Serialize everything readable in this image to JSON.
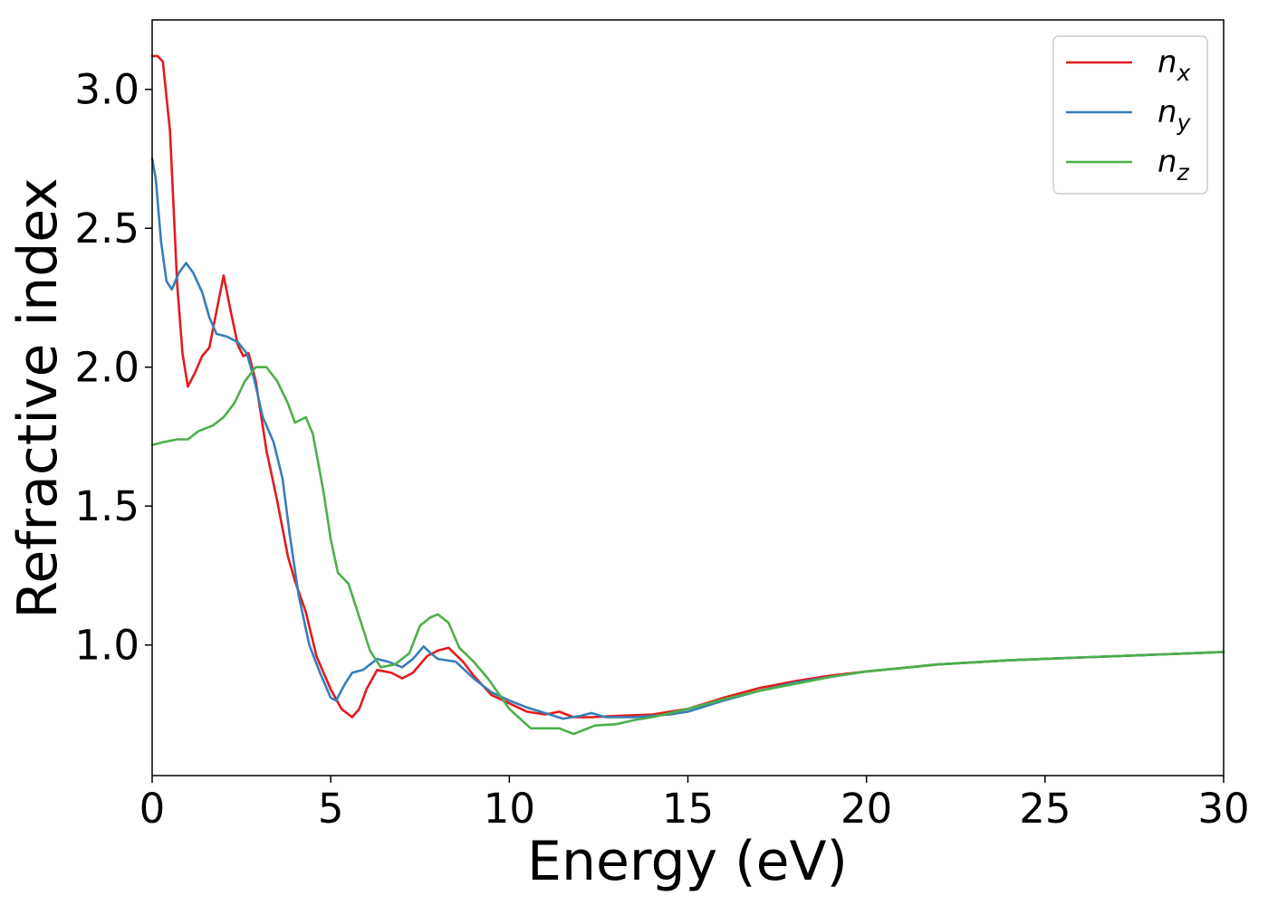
{
  "chart_data": {
    "type": "line",
    "xlabel": "Energy (eV)",
    "ylabel": "Refractive index",
    "xlim": [
      0,
      30
    ],
    "ylim": [
      0.53,
      3.25
    ],
    "grid": false,
    "legend_position": "top-right",
    "x_ticks": [
      "0",
      "5",
      "10",
      "15",
      "20",
      "25",
      "30"
    ],
    "y_ticks": [
      "1.0",
      "1.5",
      "2.0",
      "2.5",
      "3.0"
    ],
    "series": [
      {
        "name": "n_x",
        "label_base": "n",
        "label_sub": "x",
        "color": "#e41a1c",
        "points": [
          [
            0,
            3.12
          ],
          [
            0.15,
            3.12
          ],
          [
            0.3,
            3.1
          ],
          [
            0.5,
            2.85
          ],
          [
            0.7,
            2.3
          ],
          [
            0.85,
            2.05
          ],
          [
            1.0,
            1.93
          ],
          [
            1.2,
            1.98
          ],
          [
            1.4,
            2.04
          ],
          [
            1.6,
            2.07
          ],
          [
            1.8,
            2.2
          ],
          [
            2.0,
            2.33
          ],
          [
            2.2,
            2.2
          ],
          [
            2.4,
            2.08
          ],
          [
            2.55,
            2.04
          ],
          [
            2.7,
            2.05
          ],
          [
            2.9,
            1.95
          ],
          [
            3.2,
            1.7
          ],
          [
            3.5,
            1.52
          ],
          [
            3.8,
            1.32
          ],
          [
            4.0,
            1.23
          ],
          [
            4.3,
            1.12
          ],
          [
            4.6,
            0.96
          ],
          [
            5.0,
            0.84
          ],
          [
            5.3,
            0.77
          ],
          [
            5.6,
            0.74
          ],
          [
            5.8,
            0.77
          ],
          [
            6.0,
            0.84
          ],
          [
            6.3,
            0.91
          ],
          [
            6.7,
            0.9
          ],
          [
            7.0,
            0.88
          ],
          [
            7.3,
            0.9
          ],
          [
            7.7,
            0.96
          ],
          [
            8.0,
            0.98
          ],
          [
            8.3,
            0.99
          ],
          [
            8.7,
            0.94
          ],
          [
            9.0,
            0.89
          ],
          [
            9.5,
            0.82
          ],
          [
            10.0,
            0.79
          ],
          [
            10.5,
            0.76
          ],
          [
            11.0,
            0.75
          ],
          [
            11.4,
            0.76
          ],
          [
            11.8,
            0.74
          ],
          [
            12.3,
            0.74
          ],
          [
            13.0,
            0.745
          ],
          [
            14.0,
            0.75
          ],
          [
            15.0,
            0.77
          ],
          [
            16.0,
            0.81
          ],
          [
            17.0,
            0.845
          ],
          [
            18.0,
            0.87
          ],
          [
            19.0,
            0.89
          ],
          [
            20.0,
            0.905
          ],
          [
            22.0,
            0.93
          ],
          [
            24.0,
            0.945
          ],
          [
            26.0,
            0.955
          ],
          [
            28.0,
            0.965
          ],
          [
            30.0,
            0.975
          ]
        ]
      },
      {
        "name": "n_y",
        "label_base": "n",
        "label_sub": "y",
        "color": "#377eb8",
        "points": [
          [
            0,
            2.75
          ],
          [
            0.1,
            2.68
          ],
          [
            0.25,
            2.45
          ],
          [
            0.4,
            2.31
          ],
          [
            0.55,
            2.28
          ],
          [
            0.75,
            2.34
          ],
          [
            0.95,
            2.375
          ],
          [
            1.15,
            2.34
          ],
          [
            1.4,
            2.27
          ],
          [
            1.6,
            2.18
          ],
          [
            1.8,
            2.12
          ],
          [
            2.1,
            2.11
          ],
          [
            2.4,
            2.09
          ],
          [
            2.65,
            2.05
          ],
          [
            2.85,
            1.96
          ],
          [
            3.1,
            1.82
          ],
          [
            3.4,
            1.73
          ],
          [
            3.65,
            1.6
          ],
          [
            3.85,
            1.4
          ],
          [
            4.1,
            1.18
          ],
          [
            4.4,
            1.0
          ],
          [
            4.7,
            0.9
          ],
          [
            5.0,
            0.81
          ],
          [
            5.15,
            0.8
          ],
          [
            5.4,
            0.86
          ],
          [
            5.6,
            0.9
          ],
          [
            5.9,
            0.91
          ],
          [
            6.3,
            0.95
          ],
          [
            6.6,
            0.94
          ],
          [
            7.0,
            0.92
          ],
          [
            7.3,
            0.95
          ],
          [
            7.6,
            0.995
          ],
          [
            7.8,
            0.97
          ],
          [
            8.0,
            0.95
          ],
          [
            8.5,
            0.94
          ],
          [
            9.0,
            0.88
          ],
          [
            9.5,
            0.83
          ],
          [
            10.0,
            0.8
          ],
          [
            10.5,
            0.775
          ],
          [
            11.0,
            0.755
          ],
          [
            11.5,
            0.735
          ],
          [
            12.0,
            0.745
          ],
          [
            12.3,
            0.755
          ],
          [
            12.7,
            0.74
          ],
          [
            13.5,
            0.74
          ],
          [
            14.5,
            0.75
          ],
          [
            15.0,
            0.76
          ],
          [
            16.0,
            0.8
          ],
          [
            17.0,
            0.835
          ],
          [
            18.0,
            0.865
          ],
          [
            19.0,
            0.885
          ],
          [
            20.0,
            0.905
          ],
          [
            22.0,
            0.93
          ],
          [
            24.0,
            0.945
          ],
          [
            26.0,
            0.955
          ],
          [
            28.0,
            0.965
          ],
          [
            30.0,
            0.975
          ]
        ]
      },
      {
        "name": "n_z",
        "label_base": "n",
        "label_sub": "z",
        "color": "#4daf4a",
        "points": [
          [
            0,
            1.72
          ],
          [
            0.3,
            1.73
          ],
          [
            0.7,
            1.74
          ],
          [
            1.0,
            1.74
          ],
          [
            1.3,
            1.77
          ],
          [
            1.7,
            1.79
          ],
          [
            2.0,
            1.82
          ],
          [
            2.3,
            1.87
          ],
          [
            2.6,
            1.95
          ],
          [
            2.9,
            2.0
          ],
          [
            3.2,
            2.0
          ],
          [
            3.5,
            1.95
          ],
          [
            3.8,
            1.87
          ],
          [
            4.0,
            1.8
          ],
          [
            4.3,
            1.82
          ],
          [
            4.5,
            1.76
          ],
          [
            4.8,
            1.55
          ],
          [
            5.0,
            1.38
          ],
          [
            5.2,
            1.26
          ],
          [
            5.5,
            1.22
          ],
          [
            5.8,
            1.1
          ],
          [
            6.1,
            0.98
          ],
          [
            6.4,
            0.92
          ],
          [
            6.8,
            0.93
          ],
          [
            7.2,
            0.97
          ],
          [
            7.5,
            1.07
          ],
          [
            7.8,
            1.1
          ],
          [
            8.0,
            1.11
          ],
          [
            8.3,
            1.08
          ],
          [
            8.6,
            0.99
          ],
          [
            9.0,
            0.94
          ],
          [
            9.4,
            0.88
          ],
          [
            10.0,
            0.77
          ],
          [
            10.6,
            0.7
          ],
          [
            11.0,
            0.7
          ],
          [
            11.4,
            0.7
          ],
          [
            11.8,
            0.68
          ],
          [
            12.4,
            0.71
          ],
          [
            13.0,
            0.715
          ],
          [
            13.5,
            0.73
          ],
          [
            14.0,
            0.74
          ],
          [
            15.0,
            0.77
          ],
          [
            16.0,
            0.805
          ],
          [
            17.0,
            0.835
          ],
          [
            18.0,
            0.86
          ],
          [
            19.0,
            0.885
          ],
          [
            20.0,
            0.905
          ],
          [
            22.0,
            0.93
          ],
          [
            24.0,
            0.945
          ],
          [
            26.0,
            0.955
          ],
          [
            28.0,
            0.965
          ],
          [
            30.0,
            0.975
          ]
        ]
      }
    ]
  }
}
